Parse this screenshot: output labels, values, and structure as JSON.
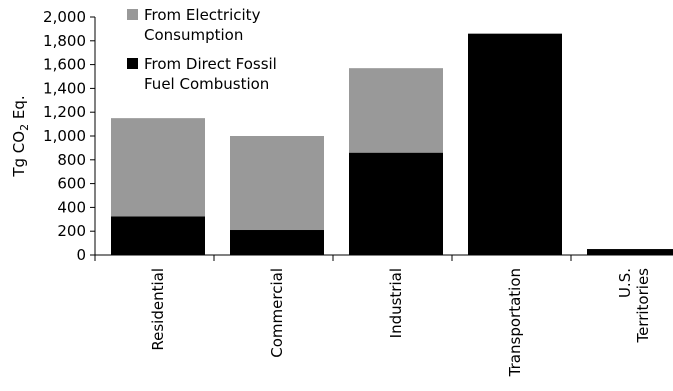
{
  "chart_data": {
    "type": "bar",
    "stacked": true,
    "title": "",
    "xlabel": "",
    "ylabel_parts": [
      "Tg CO",
      "2",
      " Eq."
    ],
    "ylim": [
      0,
      2000
    ],
    "yticks": [
      0,
      200,
      400,
      600,
      800,
      1000,
      1200,
      1400,
      1600,
      1800,
      2000
    ],
    "ytick_labels": [
      "0",
      "200",
      "400",
      "600",
      "800",
      "1,000",
      "1,200",
      "1,400",
      "1,600",
      "1,800",
      "2,000"
    ],
    "categories": [
      "Residential",
      "Commercial",
      "Industrial",
      "Transportation",
      "U.S. Territories"
    ],
    "category_label_lines": [
      [
        "Residential"
      ],
      [
        "Commercial"
      ],
      [
        "Industrial"
      ],
      [
        "Transportation"
      ],
      [
        "U.S.",
        "Territories"
      ]
    ],
    "series": [
      {
        "name": "From Direct Fossil Fuel Combustion",
        "legend_lines": [
          "From Direct Fossil",
          "Fuel Combustion"
        ],
        "color": "#000000",
        "values": [
          325,
          210,
          860,
          1860,
          50
        ]
      },
      {
        "name": "From Electricity Consumption",
        "legend_lines": [
          "From Electricity",
          "Consumption"
        ],
        "color": "#999999",
        "values": [
          825,
          790,
          710,
          0,
          0
        ]
      }
    ],
    "legend_order": [
      1,
      0
    ],
    "legend_position": "top-left",
    "grid": false
  }
}
